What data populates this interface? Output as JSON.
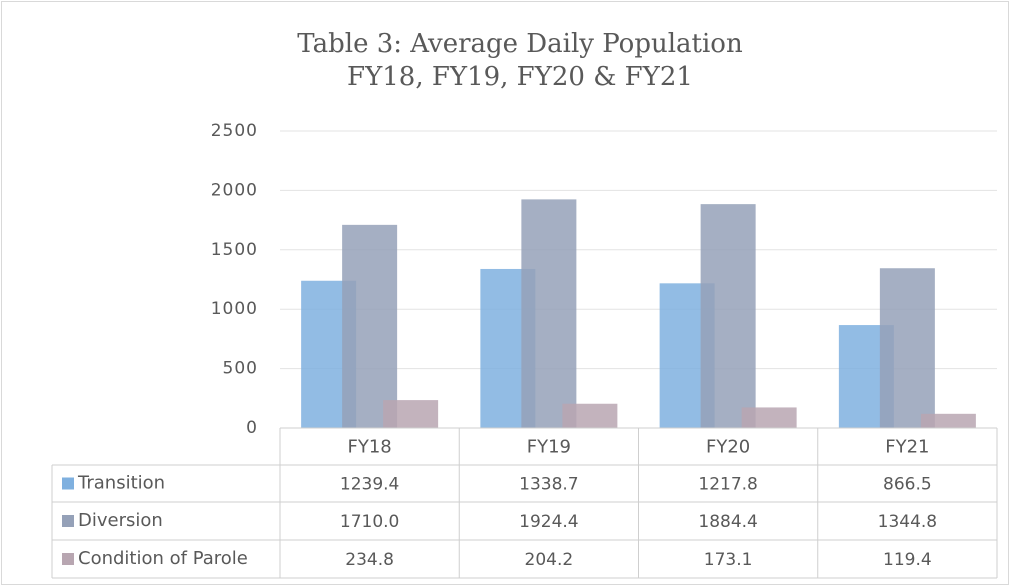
{
  "chart_data": {
    "type": "bar",
    "title": "Table 3: Average Daily Population",
    "subtitle": "FY18, FY19, FY20 & FY21",
    "categories": [
      "FY18",
      "FY19",
      "FY20",
      "FY21"
    ],
    "series": [
      {
        "name": "Transition",
        "color": "#7fb0df",
        "values": [
          1239.4,
          1338.7,
          1217.8,
          866.5
        ],
        "value_labels": [
          "1239.4",
          "1338.7",
          "1217.8",
          "866.5"
        ]
      },
      {
        "name": "Diversion",
        "color": "#95a1b8",
        "values": [
          1710.0,
          1924.4,
          1884.4,
          1344.8
        ],
        "value_labels": [
          "1710.0",
          "1924.4",
          "1884.4",
          "1344.8"
        ]
      },
      {
        "name": "Condition of Parole",
        "color": "#b8a6b1",
        "values": [
          234.8,
          204.2,
          173.1,
          119.4
        ],
        "value_labels": [
          "234.8",
          "204.2",
          "173.1",
          "119.4"
        ]
      }
    ],
    "ylim": [
      0,
      2500
    ],
    "yticks": [
      0,
      500,
      1000,
      1500,
      2000,
      2500
    ],
    "grid": true
  }
}
